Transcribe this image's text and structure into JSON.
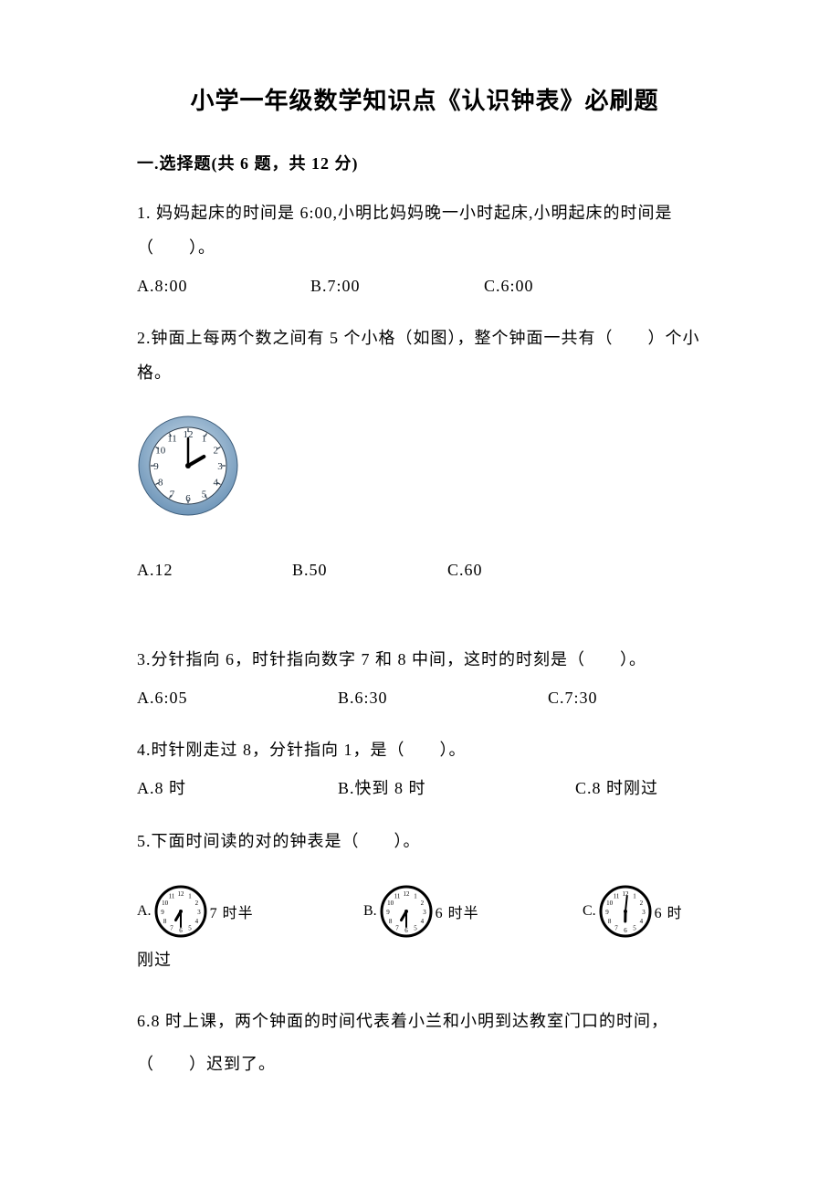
{
  "title": "小学一年级数学知识点《认识钟表》必刷题",
  "section": "一.选择题(共 6 题，共 12 分)",
  "q1": {
    "text": "1. 妈妈起床的时间是 6:00,小明比妈妈晚一小时起床,小明起床的时间是（　　）。",
    "A": "A.8:00",
    "B": "B.7:00",
    "C": "C.6:00"
  },
  "q2": {
    "text": "2.钟面上每两个数之间有 5 个小格（如图），整个钟面一共有（　　）个小格。",
    "A": "A.12",
    "B": "B.50",
    "C": "C.60",
    "clock": {
      "rim_outer": "#7ea6c9",
      "rim_inner": "#b8d0e0",
      "face": "#ffffff",
      "number_color": "#1a2a3a",
      "hand_color": "#000000",
      "hour": 2,
      "minute": 0
    }
  },
  "q3": {
    "text": "3.分针指向 6，时针指向数字 7 和 8 中间，这时的时刻是（　　）。",
    "A": "A.6:05",
    "B": "B.6:30",
    "C": "C.7:30"
  },
  "q4": {
    "text": "4.时针刚走过 8，分针指向 1，是（　　）。",
    "A": "A.8 时",
    "B": "B.快到 8 时",
    "C": "C.8 时刚过"
  },
  "q5": {
    "text": "5.下面时间读的对的钟表是（　　）。",
    "A_label": "A.",
    "A_text": "7 时半",
    "B_label": "B.",
    "B_text": "6 时半",
    "C_label": "C.",
    "C_text": "6 时",
    "after": "刚过",
    "clockA": {
      "hour": 6.5,
      "minute": 30
    },
    "clockB": {
      "hour": 6.5,
      "minute": 30
    },
    "clockC": {
      "hour": 6.02,
      "minute": 1
    },
    "style": {
      "rim": "#000000",
      "face": "#ffffff",
      "number_color": "#000000",
      "hand_color": "#000000"
    }
  },
  "q6": {
    "line1": "6.8 时上课，两个钟面的时间代表着小兰和小明到达教室门口的时间，",
    "line2": "（　　）迟到了。"
  }
}
